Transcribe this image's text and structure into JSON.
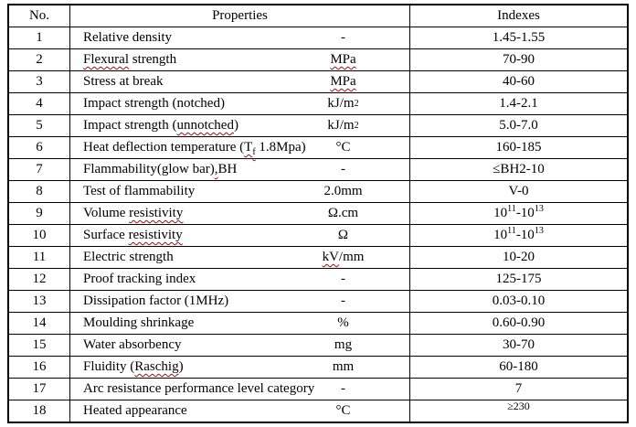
{
  "colors": {
    "background": "#ffffff",
    "text": "#000000",
    "table_border": "#000000",
    "spellcheck_squiggle": "#c00000"
  },
  "table": {
    "headers": {
      "no": "No.",
      "properties": "Properties",
      "indexes": "Indexes"
    },
    "rows": [
      {
        "no": "1",
        "property": [
          {
            "t": "Relative density"
          }
        ],
        "unit": [
          {
            "t": "-"
          }
        ],
        "index": [
          {
            "t": "1.45-1.55"
          }
        ]
      },
      {
        "no": "2",
        "property": [
          {
            "t": "Flexural",
            "s": "sq"
          },
          {
            "t": " strength"
          }
        ],
        "unit": [
          {
            "t": "MPa",
            "s": "sq"
          }
        ],
        "index": [
          {
            "t": "70-90"
          }
        ]
      },
      {
        "no": "3",
        "property": [
          {
            "t": "Stress at break"
          }
        ],
        "unit": [
          {
            "t": "MPa",
            "s": "sq"
          }
        ],
        "index": [
          {
            "t": "40-60"
          }
        ]
      },
      {
        "no": "4",
        "property": [
          {
            "t": "Impact strength (notched)"
          }
        ],
        "unit": [
          {
            "t": "kJ/m"
          },
          {
            "t": "2",
            "s": "sup"
          }
        ],
        "index": [
          {
            "t": "1.4-2.1"
          }
        ]
      },
      {
        "no": "5",
        "property": [
          {
            "t": "Impact strength ("
          },
          {
            "t": "unnotched",
            "s": "sq"
          },
          {
            "t": ")"
          }
        ],
        "unit": [
          {
            "t": "kJ/m"
          },
          {
            "t": "2",
            "s": "sup"
          }
        ],
        "index": [
          {
            "t": "5.0-7.0"
          }
        ]
      },
      {
        "no": "6",
        "property": [
          {
            "t": "Heat deflection temperature ("
          },
          {
            "t": "T",
            "s": "sq"
          },
          {
            "t": "f",
            "s": "sub sq"
          },
          {
            "t": " 1.8Mpa)"
          }
        ],
        "unit": [
          {
            "t": "°C"
          }
        ],
        "index": [
          {
            "t": "160-185"
          }
        ]
      },
      {
        "no": "7",
        "property": [
          {
            "t": "Flammability(glow bar)"
          },
          {
            "t": ",",
            "s": "sq"
          },
          {
            "t": "BH"
          }
        ],
        "unit": [
          {
            "t": "-"
          }
        ],
        "index": [
          {
            "t": "≤BH2-10"
          }
        ]
      },
      {
        "no": "8",
        "property": [
          {
            "t": "Test of flammability"
          }
        ],
        "unit": [
          {
            "t": "2.0mm"
          }
        ],
        "index": [
          {
            "t": "V-0"
          }
        ]
      },
      {
        "no": "9",
        "property": [
          {
            "t": "Volume "
          },
          {
            "t": "resistivity",
            "s": "sq"
          }
        ],
        "unit": [
          {
            "t": "Ω.cm"
          }
        ],
        "index": [
          {
            "t": "10"
          },
          {
            "t": "11",
            "s": "sup"
          },
          {
            "t": "-10"
          },
          {
            "t": "13",
            "s": "sup"
          }
        ]
      },
      {
        "no": "10",
        "property": [
          {
            "t": "Surface "
          },
          {
            "t": "resistivity",
            "s": "sq"
          }
        ],
        "unit": [
          {
            "t": "Ω"
          }
        ],
        "index": [
          {
            "t": "10"
          },
          {
            "t": "11",
            "s": "sup"
          },
          {
            "t": "-10"
          },
          {
            "t": "13",
            "s": "sup"
          }
        ]
      },
      {
        "no": "11",
        "property": [
          {
            "t": "Electric strength"
          }
        ],
        "unit": [
          {
            "t": "kV",
            "s": "sq"
          },
          {
            "t": "/mm"
          }
        ],
        "index": [
          {
            "t": "10-20"
          }
        ]
      },
      {
        "no": "12",
        "property": [
          {
            "t": "Proof tracking index"
          }
        ],
        "unit": [
          {
            "t": "-"
          }
        ],
        "index": [
          {
            "t": "125-175"
          }
        ]
      },
      {
        "no": "13",
        "property": [
          {
            "t": "Dissipation factor (1MHz)"
          }
        ],
        "unit": [
          {
            "t": "-"
          }
        ],
        "index": [
          {
            "t": "0.03-0.10"
          }
        ]
      },
      {
        "no": "14",
        "property": [
          {
            "t": "Moulding shrinkage"
          }
        ],
        "unit": [
          {
            "t": "%"
          }
        ],
        "index": [
          {
            "t": "0.60-0.90"
          }
        ]
      },
      {
        "no": "15",
        "property": [
          {
            "t": "Water absorbency"
          }
        ],
        "unit": [
          {
            "t": "mg"
          }
        ],
        "index": [
          {
            "t": "30-70"
          }
        ]
      },
      {
        "no": "16",
        "property": [
          {
            "t": "Fluidity ("
          },
          {
            "t": "Raschig",
            "s": "sq"
          },
          {
            "t": ")"
          }
        ],
        "unit": [
          {
            "t": "mm"
          }
        ],
        "index": [
          {
            "t": "60-180"
          }
        ]
      },
      {
        "no": "17",
        "property": [
          {
            "t": "Arc resistance performance level category"
          }
        ],
        "unit": [
          {
            "t": "-"
          }
        ],
        "index": [
          {
            "t": "7"
          }
        ]
      },
      {
        "no": "18",
        "property": [
          {
            "t": "Heated appearance"
          }
        ],
        "unit": [
          {
            "t": "°C"
          }
        ],
        "index": [
          {
            "t": "≥230",
            "s": "raise"
          }
        ]
      }
    ]
  }
}
